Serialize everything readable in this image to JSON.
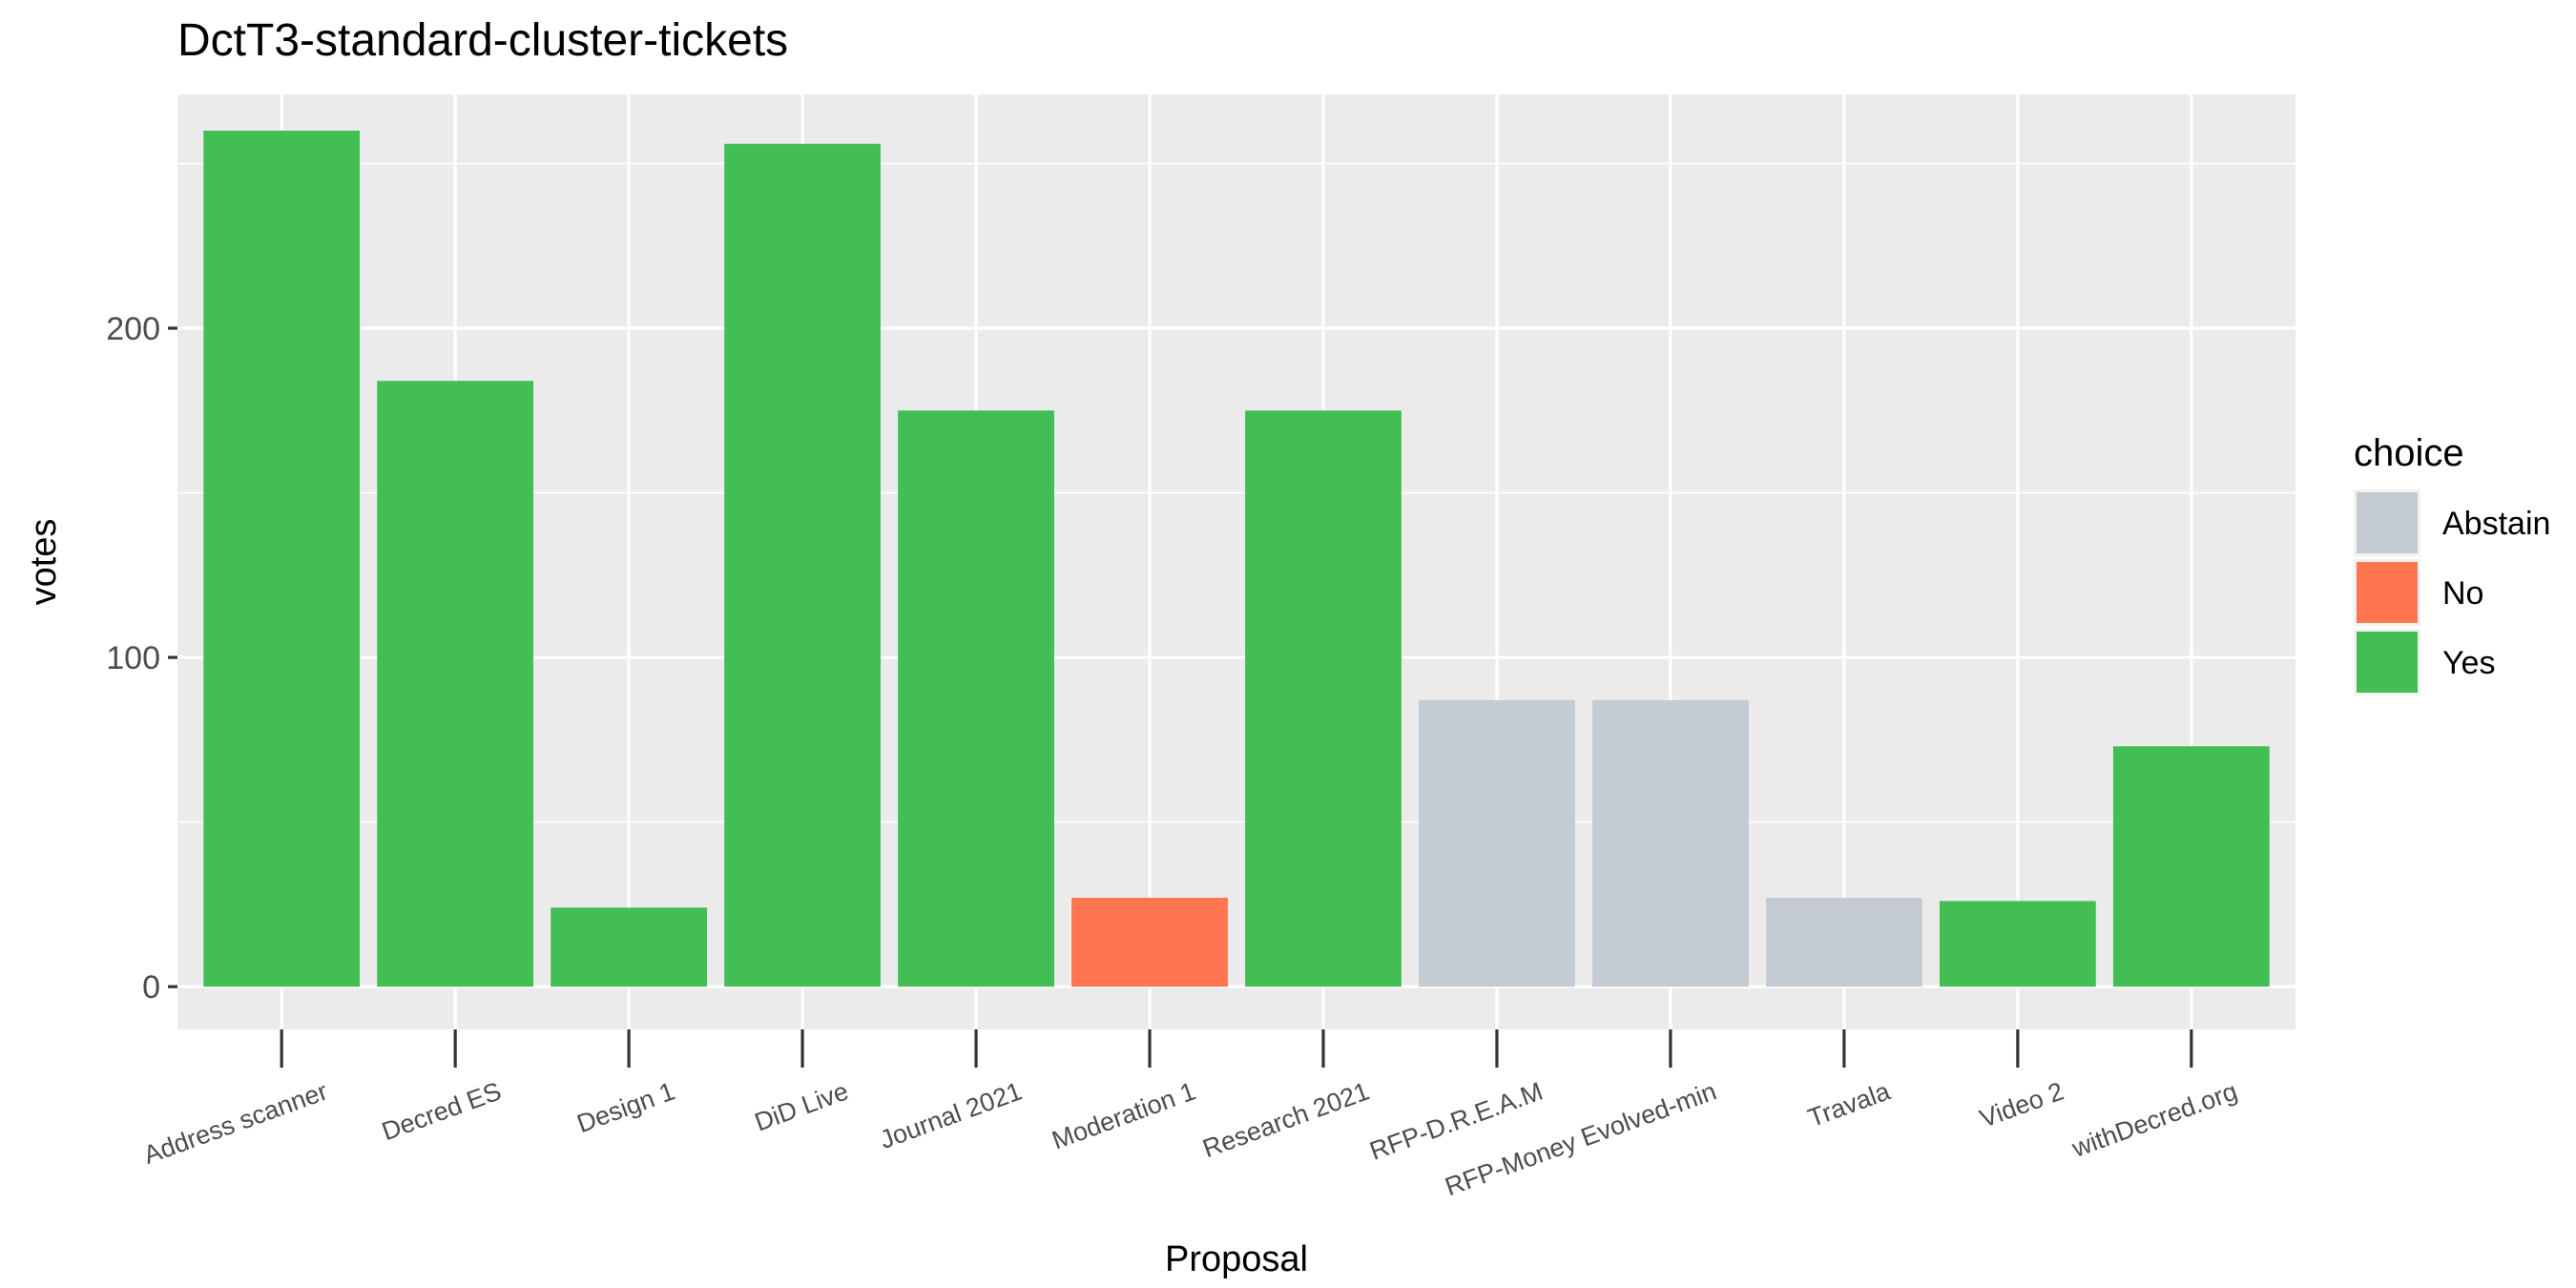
{
  "chart_data": {
    "type": "bar",
    "title": "DctT3-standard-cluster-tickets",
    "xlabel": "Proposal",
    "ylabel": "votes",
    "ylim": [
      -13,
      271
    ],
    "yticks": [
      0,
      100,
      200
    ],
    "grid": true,
    "legend": {
      "title": "choice",
      "placement": "right",
      "entries": [
        {
          "label": "Abstain",
          "color": "#C5CBD3"
        },
        {
          "label": "No",
          "color": "#FF7650"
        },
        {
          "label": "Yes",
          "color": "#42BE55"
        }
      ]
    },
    "categories": [
      "Address scanner",
      "Decred ES",
      "Design 1",
      "DiD Live",
      "Journal 2021",
      "Moderation 1",
      "Research 2021",
      "RFP-D.R.E.A.M",
      "RFP-Money Evolved-min",
      "Travala",
      "Video 2",
      "withDecred.org"
    ],
    "values": [
      260,
      184,
      24,
      256,
      175,
      27,
      175,
      87,
      87,
      27,
      26,
      73
    ],
    "choices": [
      "Yes",
      "Yes",
      "Yes",
      "Yes",
      "Yes",
      "No",
      "Yes",
      "Abstain",
      "Abstain",
      "Abstain",
      "Yes",
      "Yes"
    ]
  }
}
